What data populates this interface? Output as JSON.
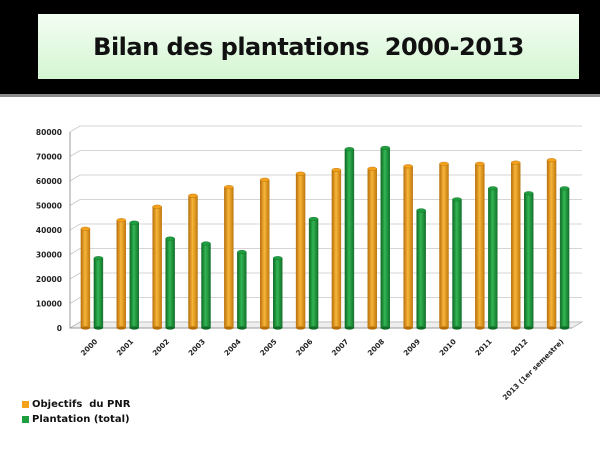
{
  "slide": {
    "title": "Bilan des plantations  2000-2013"
  },
  "colors": {
    "orange": "#f4a21c",
    "orange_dark": "#b56d07",
    "green": "#1e9e3f",
    "green_dark": "#0f6a26"
  },
  "chart_data": {
    "type": "bar",
    "title": "",
    "xlabel": "",
    "ylabel": "",
    "ylim": [
      0,
      80000
    ],
    "yticks": [
      "0",
      "10000",
      "20000",
      "30000",
      "40000",
      "50000",
      "60000",
      "70000",
      "80000"
    ],
    "categories": [
      "2000",
      "2001",
      "2002",
      "2003",
      "2004",
      "2005",
      "2006",
      "2007",
      "2008",
      "2009",
      "2010",
      "2011",
      "2012",
      "2013 (1er semestre)"
    ],
    "series": [
      {
        "name": "Objectifs  du PNR",
        "color": "#f4a21c",
        "values": [
          40500,
          44000,
          49500,
          54000,
          57500,
          60500,
          63000,
          64500,
          65000,
          66000,
          67000,
          67000,
          67500,
          68500
        ]
      },
      {
        "name": "Plantation (total)",
        "color": "#1e9e3f",
        "values": [
          28500,
          43000,
          36500,
          34500,
          31000,
          28500,
          44500,
          73000,
          73500,
          48000,
          52500,
          57000,
          55000,
          57000
        ]
      }
    ],
    "grid": true,
    "legend": "bottom-left",
    "style": "3d-cylinder"
  }
}
